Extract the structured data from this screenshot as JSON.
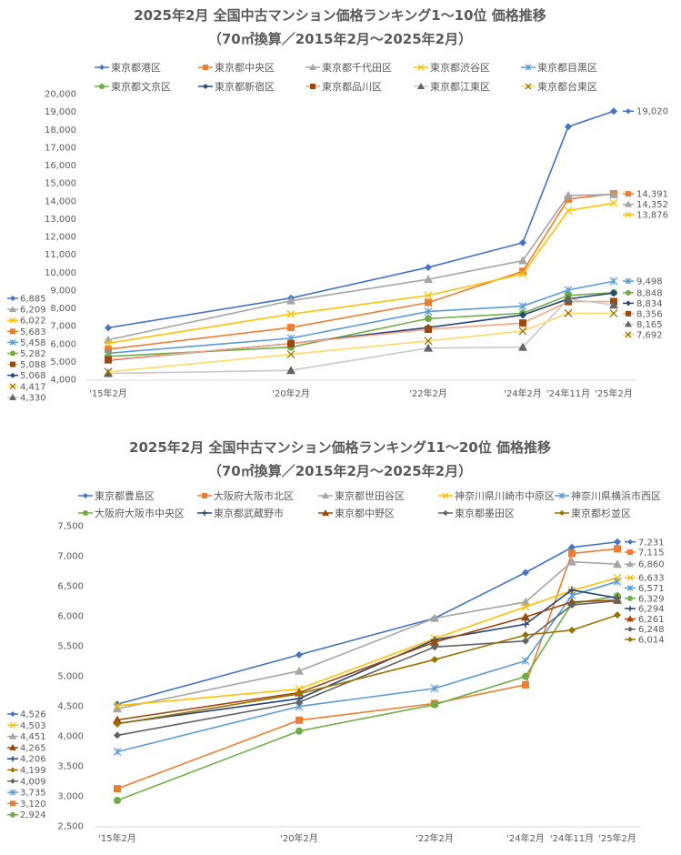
{
  "chart_data": [
    {
      "type": "line",
      "title": "2025年2月 全国中古マンション価格ランキング1～10位 価格推移",
      "subtitle": "（70㎡換算／2015年2月～2025年2月）",
      "xlabel": "",
      "ylabel": "",
      "categories": [
        "'15年2月",
        "'20年2月",
        "'22年2月",
        "'24年2月",
        "'24年11月",
        "'25年2月"
      ],
      "ylim": [
        4000,
        20000
      ],
      "ytick_step": 1000,
      "grid": false,
      "legend_position": "top",
      "series": [
        {
          "name": "東京都港区",
          "color": "#4472C4",
          "marker": "diamond",
          "values": [
            6885,
            8550,
            10270,
            11650,
            18150,
            19020
          ],
          "start_label": "6,885",
          "end_label": "19,020"
        },
        {
          "name": "東京都中央区",
          "color": "#ED7D31",
          "marker": "square",
          "values": [
            5683,
            6900,
            8300,
            10050,
            14100,
            14391
          ],
          "start_label": "5,683",
          "end_label": "14,391"
        },
        {
          "name": "東京都千代田区",
          "color": "#A5A5A5",
          "marker": "triangle",
          "values": [
            6209,
            8400,
            9600,
            10650,
            14300,
            14352
          ],
          "start_label": "6,209",
          "end_label": "14,352"
        },
        {
          "name": "東京都渋谷区",
          "color": "#FFC000",
          "marker": "x",
          "values": [
            6022,
            7650,
            8700,
            9900,
            13450,
            13876
          ],
          "start_label": "6,022",
          "end_label": "13,876"
        },
        {
          "name": "東京都目黒区",
          "color": "#5B9BD5",
          "marker": "asterisk",
          "values": [
            5458,
            6300,
            7800,
            8100,
            9000,
            9498
          ],
          "start_label": "5,458",
          "end_label": "9,498"
        },
        {
          "name": "東京都文京区",
          "color": "#70AD47",
          "marker": "circle",
          "values": [
            5282,
            5800,
            7400,
            7700,
            8700,
            8848
          ],
          "start_label": "5,282",
          "end_label": "8,848"
        },
        {
          "name": "東京都新宿区",
          "color": "#264478",
          "marker": "diamond",
          "values": [
            5068,
            6000,
            6900,
            7600,
            8500,
            8834
          ],
          "start_label": "5,068",
          "end_label": "8,834"
        },
        {
          "name": "東京都品川区",
          "color": "#F4A582",
          "marker_color": "#9E480E",
          "marker": "square",
          "values": [
            5088,
            6000,
            6800,
            7150,
            8350,
            8356
          ],
          "start_label": "5,088",
          "end_label": "8,356"
        },
        {
          "name": "東京都江東区",
          "color": "#C9C9C9",
          "marker_color": "#636363",
          "marker": "triangle",
          "values": [
            4330,
            4500,
            5750,
            5800,
            8500,
            8165
          ],
          "start_label": "4,330",
          "end_label": "8,165"
        },
        {
          "name": "東京都台東区",
          "color": "#FFD966",
          "marker_color": "#997300",
          "marker": "x",
          "values": [
            4417,
            5400,
            6150,
            6700,
            7700,
            7692
          ],
          "start_label": "4,417",
          "end_label": "7,692"
        }
      ]
    },
    {
      "type": "line",
      "title": "2025年2月 全国中古マンション価格ランキング11～20位 価格推移",
      "subtitle": "（70㎡換算／2015年2月～2025年2月）",
      "xlabel": "",
      "ylabel": "",
      "categories": [
        "'15年2月",
        "'20年2月",
        "'22年2月",
        "'24年2月",
        "'24年11月",
        "'25年2月"
      ],
      "ylim": [
        2500,
        7500
      ],
      "ytick_step": 500,
      "grid": false,
      "legend_position": "top",
      "series": [
        {
          "name": "東京都豊島区",
          "color": "#4472C4",
          "marker": "diamond",
          "values": [
            4526,
            5350,
            5960,
            6720,
            7140,
            7231
          ],
          "start_label": "4,526",
          "end_label": "7,231"
        },
        {
          "name": "大阪府大阪市北区",
          "color": "#ED7D31",
          "marker": "square",
          "values": [
            3120,
            4260,
            4540,
            4850,
            7040,
            7115
          ],
          "start_label": "3,120",
          "end_label": "7,115"
        },
        {
          "name": "東京都世田谷区",
          "color": "#A5A5A5",
          "marker": "triangle",
          "values": [
            4451,
            5080,
            5960,
            6230,
            6900,
            6860
          ],
          "start_label": "4,451",
          "end_label": "6,860"
        },
        {
          "name": "神奈川県川崎市中原区",
          "color": "#FFC000",
          "marker": "x",
          "values": [
            4503,
            4780,
            5620,
            6150,
            6420,
            6633
          ],
          "start_label": "4,503",
          "end_label": "6,633"
        },
        {
          "name": "神奈川県横浜市西区",
          "color": "#5B9BD5",
          "marker": "asterisk",
          "values": [
            3735,
            4490,
            4790,
            5250,
            6340,
            6571
          ],
          "start_label": "3,735",
          "end_label": "6,571"
        },
        {
          "name": "大阪府大阪市中央区",
          "color": "#70AD47",
          "marker": "circle",
          "values": [
            2924,
            4080,
            4520,
            4990,
            6200,
            6329
          ],
          "start_label": "2,924",
          "end_label": "6,329"
        },
        {
          "name": "東京都武蔵野市",
          "color": "#264478",
          "marker": "plus",
          "values": [
            4206,
            4620,
            5600,
            5860,
            6430,
            6294
          ],
          "start_label": "4,206",
          "end_label": "6,294"
        },
        {
          "name": "東京都中野区",
          "color": "#9E480E",
          "marker": "triangle",
          "values": [
            4265,
            4720,
            5560,
            5980,
            6230,
            6261
          ],
          "start_label": "4,265",
          "end_label": "6,261"
        },
        {
          "name": "東京都墨田区",
          "color": "#636363",
          "marker": "diamond",
          "values": [
            4009,
            4560,
            5480,
            5580,
            6180,
            6248
          ],
          "start_label": "4,009",
          "end_label": "6,248"
        },
        {
          "name": "東京都杉並区",
          "color": "#997300",
          "marker": "diamond",
          "values": [
            4199,
            4700,
            5270,
            5680,
            5760,
            6014
          ],
          "start_label": "4,199",
          "end_label": "6,014"
        }
      ]
    }
  ]
}
